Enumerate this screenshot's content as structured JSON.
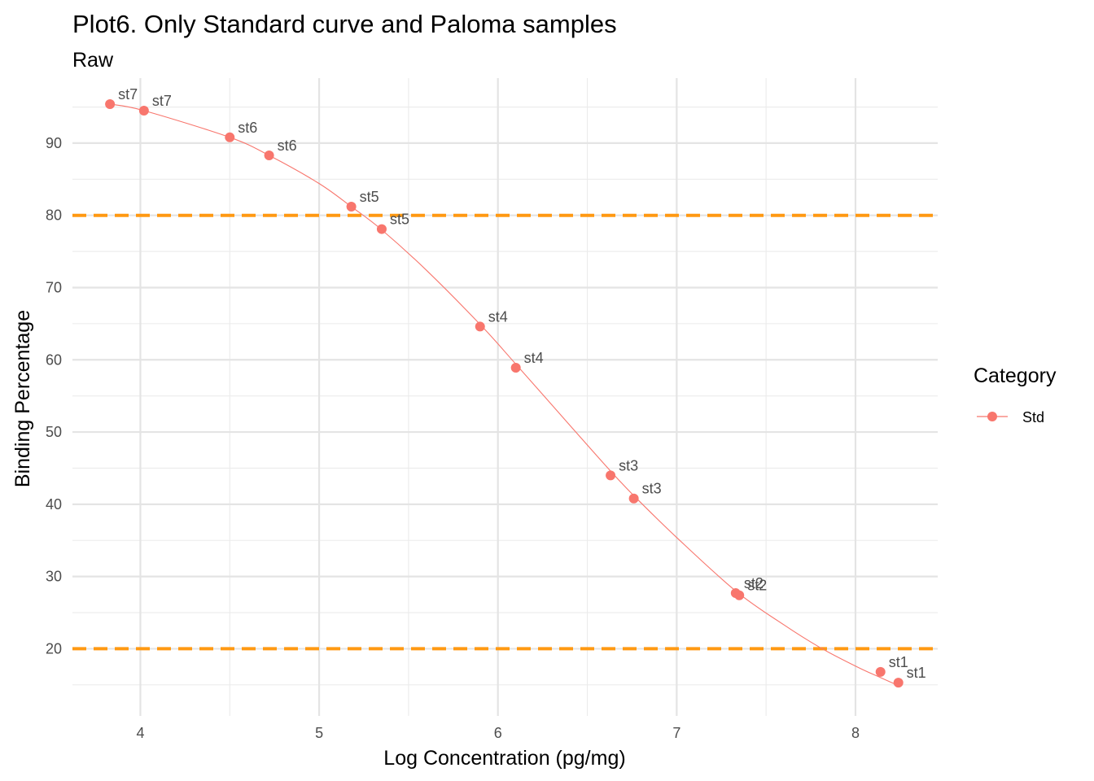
{
  "chart_data": {
    "type": "scatter",
    "title": "Plot6. Only Standard curve and Paloma samples",
    "subtitle": "Raw",
    "xlabel": "Log Concentration (pg/mg)",
    "ylabel": "Binding Percentage",
    "xlim": [
      3.62,
      8.46
    ],
    "ylim": [
      10.7,
      99.0
    ],
    "x_ticks": [
      4,
      5,
      6,
      7,
      8
    ],
    "y_ticks": [
      20,
      30,
      40,
      50,
      60,
      70,
      80,
      90
    ],
    "grid": true,
    "reference_lines": [
      {
        "y": 80,
        "color": "#ff9912",
        "style": "dashed"
      },
      {
        "y": 20,
        "color": "#ff9912",
        "style": "dashed"
      }
    ],
    "legend": {
      "title": "Category",
      "position": "right",
      "entries": [
        {
          "name": "Std",
          "color": "#f8766d"
        }
      ]
    },
    "series": [
      {
        "name": "Std",
        "color": "#f8766d",
        "points": [
          {
            "x": 3.83,
            "y": 95.4,
            "label": "st7"
          },
          {
            "x": 4.02,
            "y": 94.5,
            "label": "st7"
          },
          {
            "x": 4.5,
            "y": 90.8,
            "label": "st6"
          },
          {
            "x": 4.72,
            "y": 88.3,
            "label": "st6"
          },
          {
            "x": 5.18,
            "y": 81.2,
            "label": "st5"
          },
          {
            "x": 5.35,
            "y": 78.1,
            "label": "st5"
          },
          {
            "x": 5.9,
            "y": 64.6,
            "label": "st4"
          },
          {
            "x": 6.1,
            "y": 58.9,
            "label": "st4"
          },
          {
            "x": 6.63,
            "y": 44.0,
            "label": "st3"
          },
          {
            "x": 6.76,
            "y": 40.8,
            "label": "st3"
          },
          {
            "x": 7.33,
            "y": 27.7,
            "label": "st2"
          },
          {
            "x": 7.35,
            "y": 27.4,
            "label": "st2"
          },
          {
            "x": 8.14,
            "y": 16.8,
            "label": "st1"
          },
          {
            "x": 8.24,
            "y": 15.3,
            "label": "st1"
          }
        ],
        "fit_curve": [
          [
            3.83,
            95.4
          ],
          [
            4.02,
            94.5
          ],
          [
            4.5,
            90.8
          ],
          [
            4.72,
            88.3
          ],
          [
            5.0,
            84.4
          ],
          [
            5.18,
            81.2
          ],
          [
            5.35,
            78.0
          ],
          [
            5.6,
            72.4
          ],
          [
            5.9,
            64.9
          ],
          [
            6.1,
            59.4
          ],
          [
            6.4,
            51.0
          ],
          [
            6.63,
            44.6
          ],
          [
            6.76,
            41.2
          ],
          [
            7.0,
            35.4
          ],
          [
            7.33,
            28.0
          ],
          [
            7.6,
            23.3
          ],
          [
            7.8,
            20.2
          ],
          [
            8.0,
            17.6
          ],
          [
            8.14,
            16.0
          ],
          [
            8.24,
            14.9
          ]
        ]
      }
    ]
  }
}
